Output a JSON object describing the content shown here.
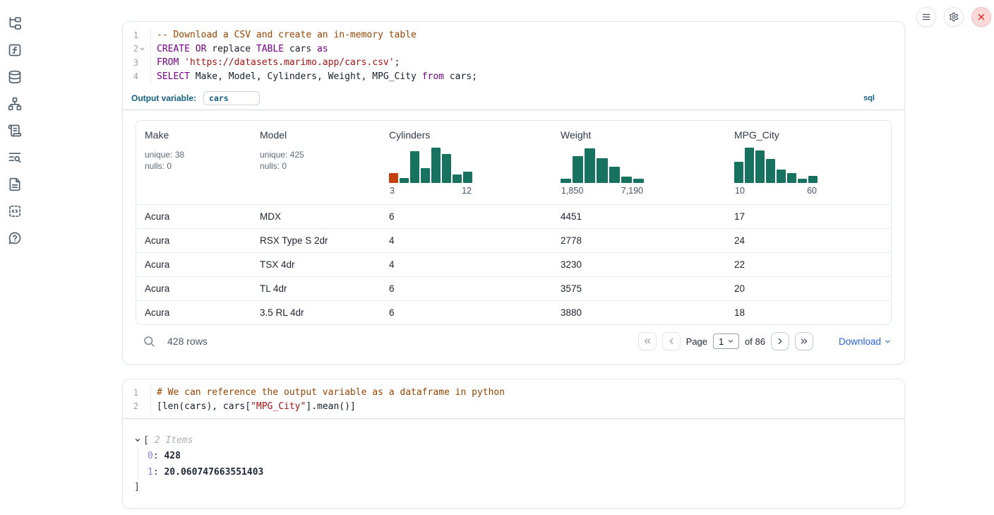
{
  "colors": {
    "hist_green": "#17735f",
    "hist_orange": "#c2410c",
    "keyword": "#770088",
    "comment": "#994400",
    "string": "#aa1111",
    "teal_label": "#136081",
    "link_blue": "#2563eb",
    "danger_red": "#dc2626"
  },
  "sidebar": {
    "icons": [
      "file-tree-icon",
      "function-square-icon",
      "database-icon",
      "network-icon",
      "scroll-text-icon",
      "text-search-icon",
      "file-text-icon",
      "code-snippet-icon",
      "help-bubble-icon"
    ]
  },
  "topbar": {
    "icons": [
      "menu-icon",
      "settings-gear-icon",
      "close-x-icon"
    ]
  },
  "sql_cell": {
    "code": [
      {
        "n": "1",
        "fold": false,
        "tokens": [
          [
            "cm",
            "-- Download a CSV and create an in-memory table"
          ]
        ]
      },
      {
        "n": "2",
        "fold": true,
        "tokens": [
          [
            "kw",
            "CREATE"
          ],
          [
            "pl",
            " "
          ],
          [
            "kw",
            "OR"
          ],
          [
            "pl",
            " replace "
          ],
          [
            "kw",
            "TABLE"
          ],
          [
            "pl",
            " cars "
          ],
          [
            "kw",
            "as"
          ]
        ]
      },
      {
        "n": "3",
        "fold": false,
        "tokens": [
          [
            "kw",
            "FROM"
          ],
          [
            "pl",
            " "
          ],
          [
            "str",
            "'https://datasets.marimo.app/cars.csv'"
          ],
          [
            "pl",
            ";"
          ]
        ]
      },
      {
        "n": "4",
        "fold": false,
        "tokens": [
          [
            "kw",
            "SELECT"
          ],
          [
            "pl",
            " Make, Model, Cylinders, Weight, MPG_City "
          ],
          [
            "kw",
            "from"
          ],
          [
            "pl",
            " cars;"
          ]
        ]
      }
    ],
    "output_variable": {
      "label": "Output variable:",
      "value": "cars"
    },
    "language_badge": "sql",
    "table": {
      "columns": [
        {
          "name": "Make",
          "stats": [
            "unique: 38",
            "nulls: 0"
          ]
        },
        {
          "name": "Model",
          "stats": [
            "unique: 425",
            "nulls: 0"
          ]
        },
        {
          "name": "Cylinders",
          "histogram": {
            "min_label": "3",
            "max_label": "12",
            "bars": [
              26,
              14,
              86,
              40,
              96,
              78,
              24,
              30
            ],
            "first_bar_orange": true
          }
        },
        {
          "name": "Weight",
          "histogram": {
            "min_label": "1,850",
            "max_label": "7,190",
            "bars": [
              12,
              74,
              95,
              68,
              45,
              17,
              12
            ],
            "first_bar_orange": false
          }
        },
        {
          "name": "MPG_City",
          "histogram": {
            "min_label": "10",
            "max_label": "60",
            "bars": [
              58,
              96,
              89,
              66,
              37,
              27,
              11,
              19
            ],
            "first_bar_orange": false
          }
        }
      ],
      "rows": [
        [
          "Acura",
          "MDX",
          "6",
          "4451",
          "17"
        ],
        [
          "Acura",
          "RSX Type S 2dr",
          "4",
          "2778",
          "24"
        ],
        [
          "Acura",
          "TSX 4dr",
          "4",
          "3230",
          "22"
        ],
        [
          "Acura",
          "TL 4dr",
          "6",
          "3575",
          "20"
        ],
        [
          "Acura",
          "3.5 RL 4dr",
          "6",
          "3880",
          "18"
        ]
      ]
    },
    "footer": {
      "row_count": "428 rows",
      "page_label": "Page",
      "page_value": "1",
      "total_label": "of 86",
      "download_label": "Download"
    }
  },
  "python_cell": {
    "code": [
      {
        "n": "1",
        "fold": false,
        "tokens": [
          [
            "cm",
            "# We can reference the output variable as a dataframe in python"
          ]
        ]
      },
      {
        "n": "2",
        "fold": false,
        "tokens": [
          [
            "pl",
            "[len(cars), cars["
          ],
          [
            "str",
            "\"MPG_City\""
          ],
          [
            "pl",
            "].mean()]"
          ]
        ]
      }
    ],
    "output": {
      "open_bracket": "[",
      "count_label": "2 Items",
      "items": [
        {
          "index": "0",
          "value": "428"
        },
        {
          "index": "1",
          "value": "20.060747663551403"
        }
      ],
      "close_bracket": "]"
    }
  }
}
